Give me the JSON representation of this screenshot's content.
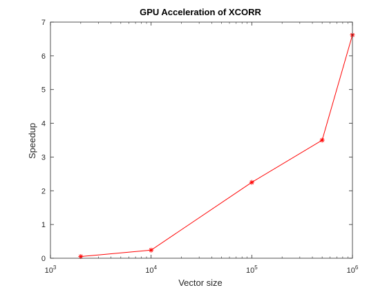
{
  "chart_data": {
    "type": "line",
    "title": "GPU Acceleration of XCORR",
    "xlabel": "Vector size",
    "ylabel": "Speedup",
    "xscale": "log",
    "xlim": [
      1000,
      1000000
    ],
    "ylim": [
      0,
      7
    ],
    "x_ticks": [
      {
        "value": 1000,
        "base": "10",
        "exp": "3"
      },
      {
        "value": 10000,
        "base": "10",
        "exp": "4"
      },
      {
        "value": 100000,
        "base": "10",
        "exp": "5"
      },
      {
        "value": 1000000,
        "base": "10",
        "exp": "6"
      }
    ],
    "y_ticks": [
      0,
      1,
      2,
      3,
      4,
      5,
      6,
      7
    ],
    "grid": false,
    "box": true,
    "series": [
      {
        "color": "#ff0000",
        "marker": "asterisk",
        "x": [
          2000,
          10000,
          100000,
          500000,
          1000000
        ],
        "y": [
          0.05,
          0.24,
          2.25,
          3.5,
          6.62
        ]
      }
    ]
  }
}
